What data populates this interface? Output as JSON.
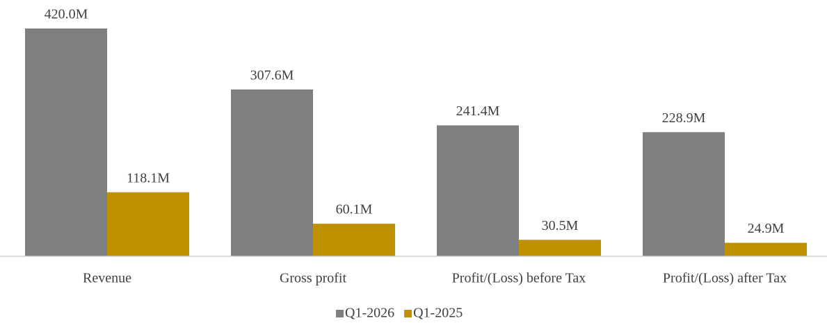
{
  "chart_data": {
    "type": "bar",
    "categories": [
      "Revenue",
      "Gross profit",
      "Profit/(Loss) before Tax",
      "Profit/(Loss) after Tax"
    ],
    "series": [
      {
        "name": "Q1-2026",
        "color": "#7f7f7f",
        "values": [
          420.0,
          307.6,
          241.4,
          228.9
        ],
        "value_labels": [
          "420.0M",
          "307.6M",
          "241.4M",
          "228.9M"
        ]
      },
      {
        "name": "Q1-2025",
        "color": "#bf9000",
        "values": [
          118.1,
          60.1,
          30.5,
          24.9
        ],
        "value_labels": [
          "118.1M",
          "60.1M",
          "30.5M",
          "24.9M"
        ]
      }
    ],
    "legend": "bottom"
  }
}
